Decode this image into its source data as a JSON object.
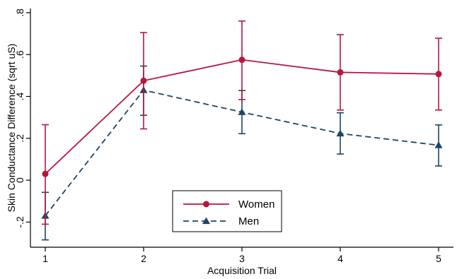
{
  "chart_data": {
    "type": "line",
    "title": "",
    "xlabel": "Acquisition Trial",
    "ylabel": "Skin Conductance Difference (sqrt uS)",
    "x": [
      1,
      2,
      3,
      4,
      5
    ],
    "x_tick_labels": [
      "1",
      "2",
      "3",
      "4",
      "5"
    ],
    "xlim": [
      1,
      5
    ],
    "ylim": [
      -0.32,
      0.82
    ],
    "y_ticks": [
      -0.2,
      0,
      0.2,
      0.4,
      0.6,
      0.8
    ],
    "y_tick_labels": [
      "-.2",
      "0",
      ".2",
      ".4",
      ".6",
      ".8"
    ],
    "grid": false,
    "legend_position": "bottom-center",
    "error_bars": true,
    "series": [
      {
        "name": "Women",
        "color": "#b7163f",
        "marker": "circle",
        "line_style": "solid",
        "values": [
          0.03,
          0.475,
          0.575,
          0.515,
          0.507
        ],
        "lower": [
          -0.21,
          0.245,
          0.385,
          0.335,
          0.335
        ],
        "upper": [
          0.265,
          0.705,
          0.76,
          0.695,
          0.678
        ]
      },
      {
        "name": "Men",
        "color": "#1e4466",
        "marker": "triangle",
        "line_style": "dashed",
        "values": [
          -0.17,
          0.43,
          0.325,
          0.223,
          0.167
        ],
        "lower": [
          -0.285,
          0.31,
          0.222,
          0.125,
          0.068
        ],
        "upper": [
          -0.058,
          0.545,
          0.428,
          0.322,
          0.264
        ]
      }
    ]
  }
}
